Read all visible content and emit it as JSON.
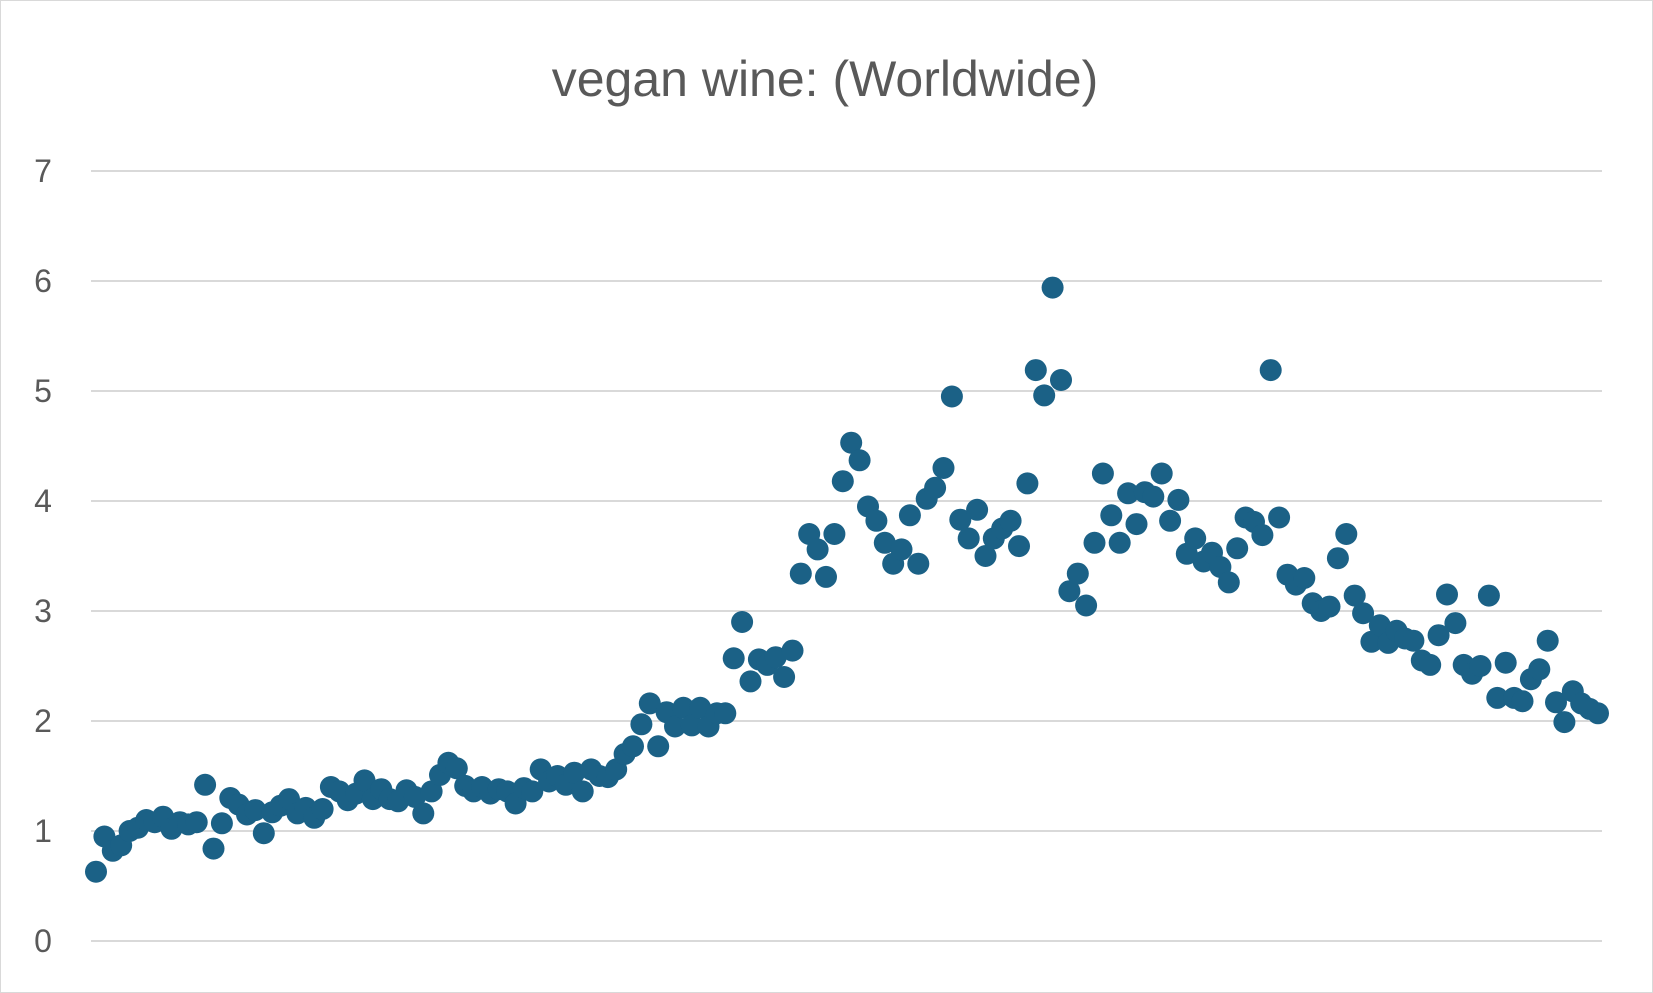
{
  "chart_data": {
    "type": "scatter",
    "title": "vegan wine: (Worldwide)",
    "xlabel": "",
    "ylabel": "",
    "ylim": [
      0,
      7
    ],
    "yticks": [
      "0",
      "1",
      "2",
      "3",
      "4",
      "5",
      "6",
      "7"
    ],
    "grid": true,
    "marker_color": "#1b6186",
    "x_range": [
      1,
      180
    ],
    "series": [
      {
        "x": [
          1,
          2,
          3,
          4,
          5,
          6,
          7,
          8,
          9,
          10,
          11,
          12,
          13,
          14,
          15,
          16,
          17,
          18,
          19,
          20,
          21,
          22,
          23,
          24,
          25,
          26,
          27,
          28,
          29,
          30,
          31,
          32,
          33,
          34,
          35,
          36,
          37,
          38,
          39,
          40,
          41,
          42,
          43,
          44,
          45,
          46,
          47,
          48,
          49,
          50,
          51,
          52,
          53,
          54,
          55,
          56,
          57,
          58,
          59,
          60,
          61,
          62,
          63,
          64,
          65,
          66,
          67,
          68,
          69,
          70,
          71,
          72,
          73,
          74,
          75,
          76,
          77,
          78,
          79,
          80,
          81,
          82,
          83,
          84,
          85,
          86,
          87,
          88,
          89,
          90,
          91,
          92,
          93,
          94,
          95,
          96,
          97,
          98,
          99,
          100,
          101,
          102,
          103,
          104,
          105,
          106,
          107,
          108,
          109,
          110,
          111,
          112,
          113,
          114,
          115,
          116,
          117,
          118,
          119,
          120,
          121,
          122,
          123,
          124,
          125,
          126,
          127,
          128,
          129,
          130,
          131,
          132,
          133,
          134,
          135,
          136,
          137,
          138,
          139,
          140,
          141,
          142,
          143,
          144,
          145,
          146,
          147,
          148,
          149,
          150,
          151,
          152,
          153,
          154,
          155,
          156,
          157,
          158,
          159,
          160,
          161,
          162,
          163,
          164,
          165,
          166,
          167,
          168,
          169,
          170,
          171,
          172,
          173,
          174,
          175,
          176,
          177,
          178,
          179,
          180
        ],
        "y": [
          0.63,
          0.95,
          0.82,
          0.87,
          1.0,
          1.03,
          1.1,
          1.08,
          1.13,
          1.02,
          1.08,
          1.06,
          1.08,
          1.42,
          0.84,
          1.07,
          1.3,
          1.24,
          1.15,
          1.19,
          0.98,
          1.17,
          1.23,
          1.29,
          1.16,
          1.21,
          1.12,
          1.2,
          1.4,
          1.36,
          1.28,
          1.34,
          1.46,
          1.29,
          1.38,
          1.29,
          1.27,
          1.37,
          1.31,
          1.16,
          1.36,
          1.51,
          1.62,
          1.57,
          1.41,
          1.36,
          1.4,
          1.34,
          1.38,
          1.36,
          1.25,
          1.39,
          1.36,
          1.56,
          1.45,
          1.5,
          1.42,
          1.53,
          1.36,
          1.56,
          1.5,
          1.49,
          1.56,
          1.7,
          1.77,
          1.97,
          2.16,
          1.77,
          2.08,
          1.95,
          2.12,
          1.96,
          2.12,
          1.95,
          2.07,
          2.07,
          2.57,
          2.9,
          2.36,
          2.56,
          2.51,
          2.58,
          2.4,
          2.64,
          3.34,
          3.7,
          3.56,
          3.31,
          3.7,
          4.18,
          4.53,
          4.37,
          3.95,
          3.82,
          3.62,
          3.43,
          3.56,
          3.87,
          3.43,
          4.02,
          4.12,
          4.3,
          4.95,
          3.83,
          3.66,
          3.92,
          3.5,
          3.66,
          3.75,
          3.82,
          3.59,
          4.16,
          5.19,
          4.96,
          5.94,
          5.1,
          3.18,
          3.34,
          3.05,
          3.62,
          4.25,
          3.87,
          3.62,
          4.07,
          3.79,
          4.08,
          4.04,
          4.25,
          3.82,
          4.01,
          3.52,
          3.66,
          3.45,
          3.53,
          3.4,
          3.26,
          3.57,
          3.85,
          3.81,
          3.69,
          5.19,
          3.85,
          3.33,
          3.24,
          3.3,
          3.07,
          3.0,
          3.04,
          3.48,
          3.7,
          3.14,
          2.98,
          2.72,
          2.87,
          2.71,
          2.82,
          2.75,
          2.73,
          2.55,
          2.51,
          2.78,
          3.15,
          2.89,
          2.51,
          2.43,
          2.5,
          3.14,
          2.21,
          2.53,
          2.21,
          2.18,
          2.38,
          2.47,
          2.73,
          2.17,
          1.99,
          2.27,
          2.16,
          2.11,
          2.07
        ]
      }
    ]
  }
}
